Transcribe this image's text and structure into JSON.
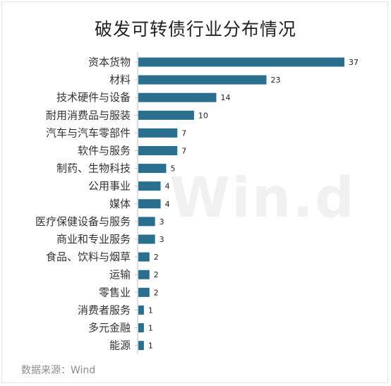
{
  "chart_data": {
    "type": "bar",
    "orientation": "horizontal",
    "title": "破发可转债行业分布情况",
    "categories": [
      "资本货物",
      "材料",
      "技术硬件与设备",
      "耐用消费品与服装",
      "汽车与汽车零部件",
      "软件与服务",
      "制药、生物科技",
      "公用事业",
      "媒体",
      "医疗保健设备与服务",
      "商业和专业服务",
      "食品、饮料与烟草",
      "运输",
      "零售业",
      "消费者服务",
      "多元金融",
      "能源"
    ],
    "values": [
      37,
      23,
      14,
      10,
      7,
      7,
      5,
      4,
      4,
      3,
      3,
      2,
      2,
      2,
      1,
      1,
      1
    ],
    "bar_color": "#2b6f8f",
    "xlim": [
      0,
      37
    ],
    "grid": false,
    "legend": "none",
    "data_labels": true
  },
  "watermark": "Win.d",
  "source": "数据来源：Wind"
}
